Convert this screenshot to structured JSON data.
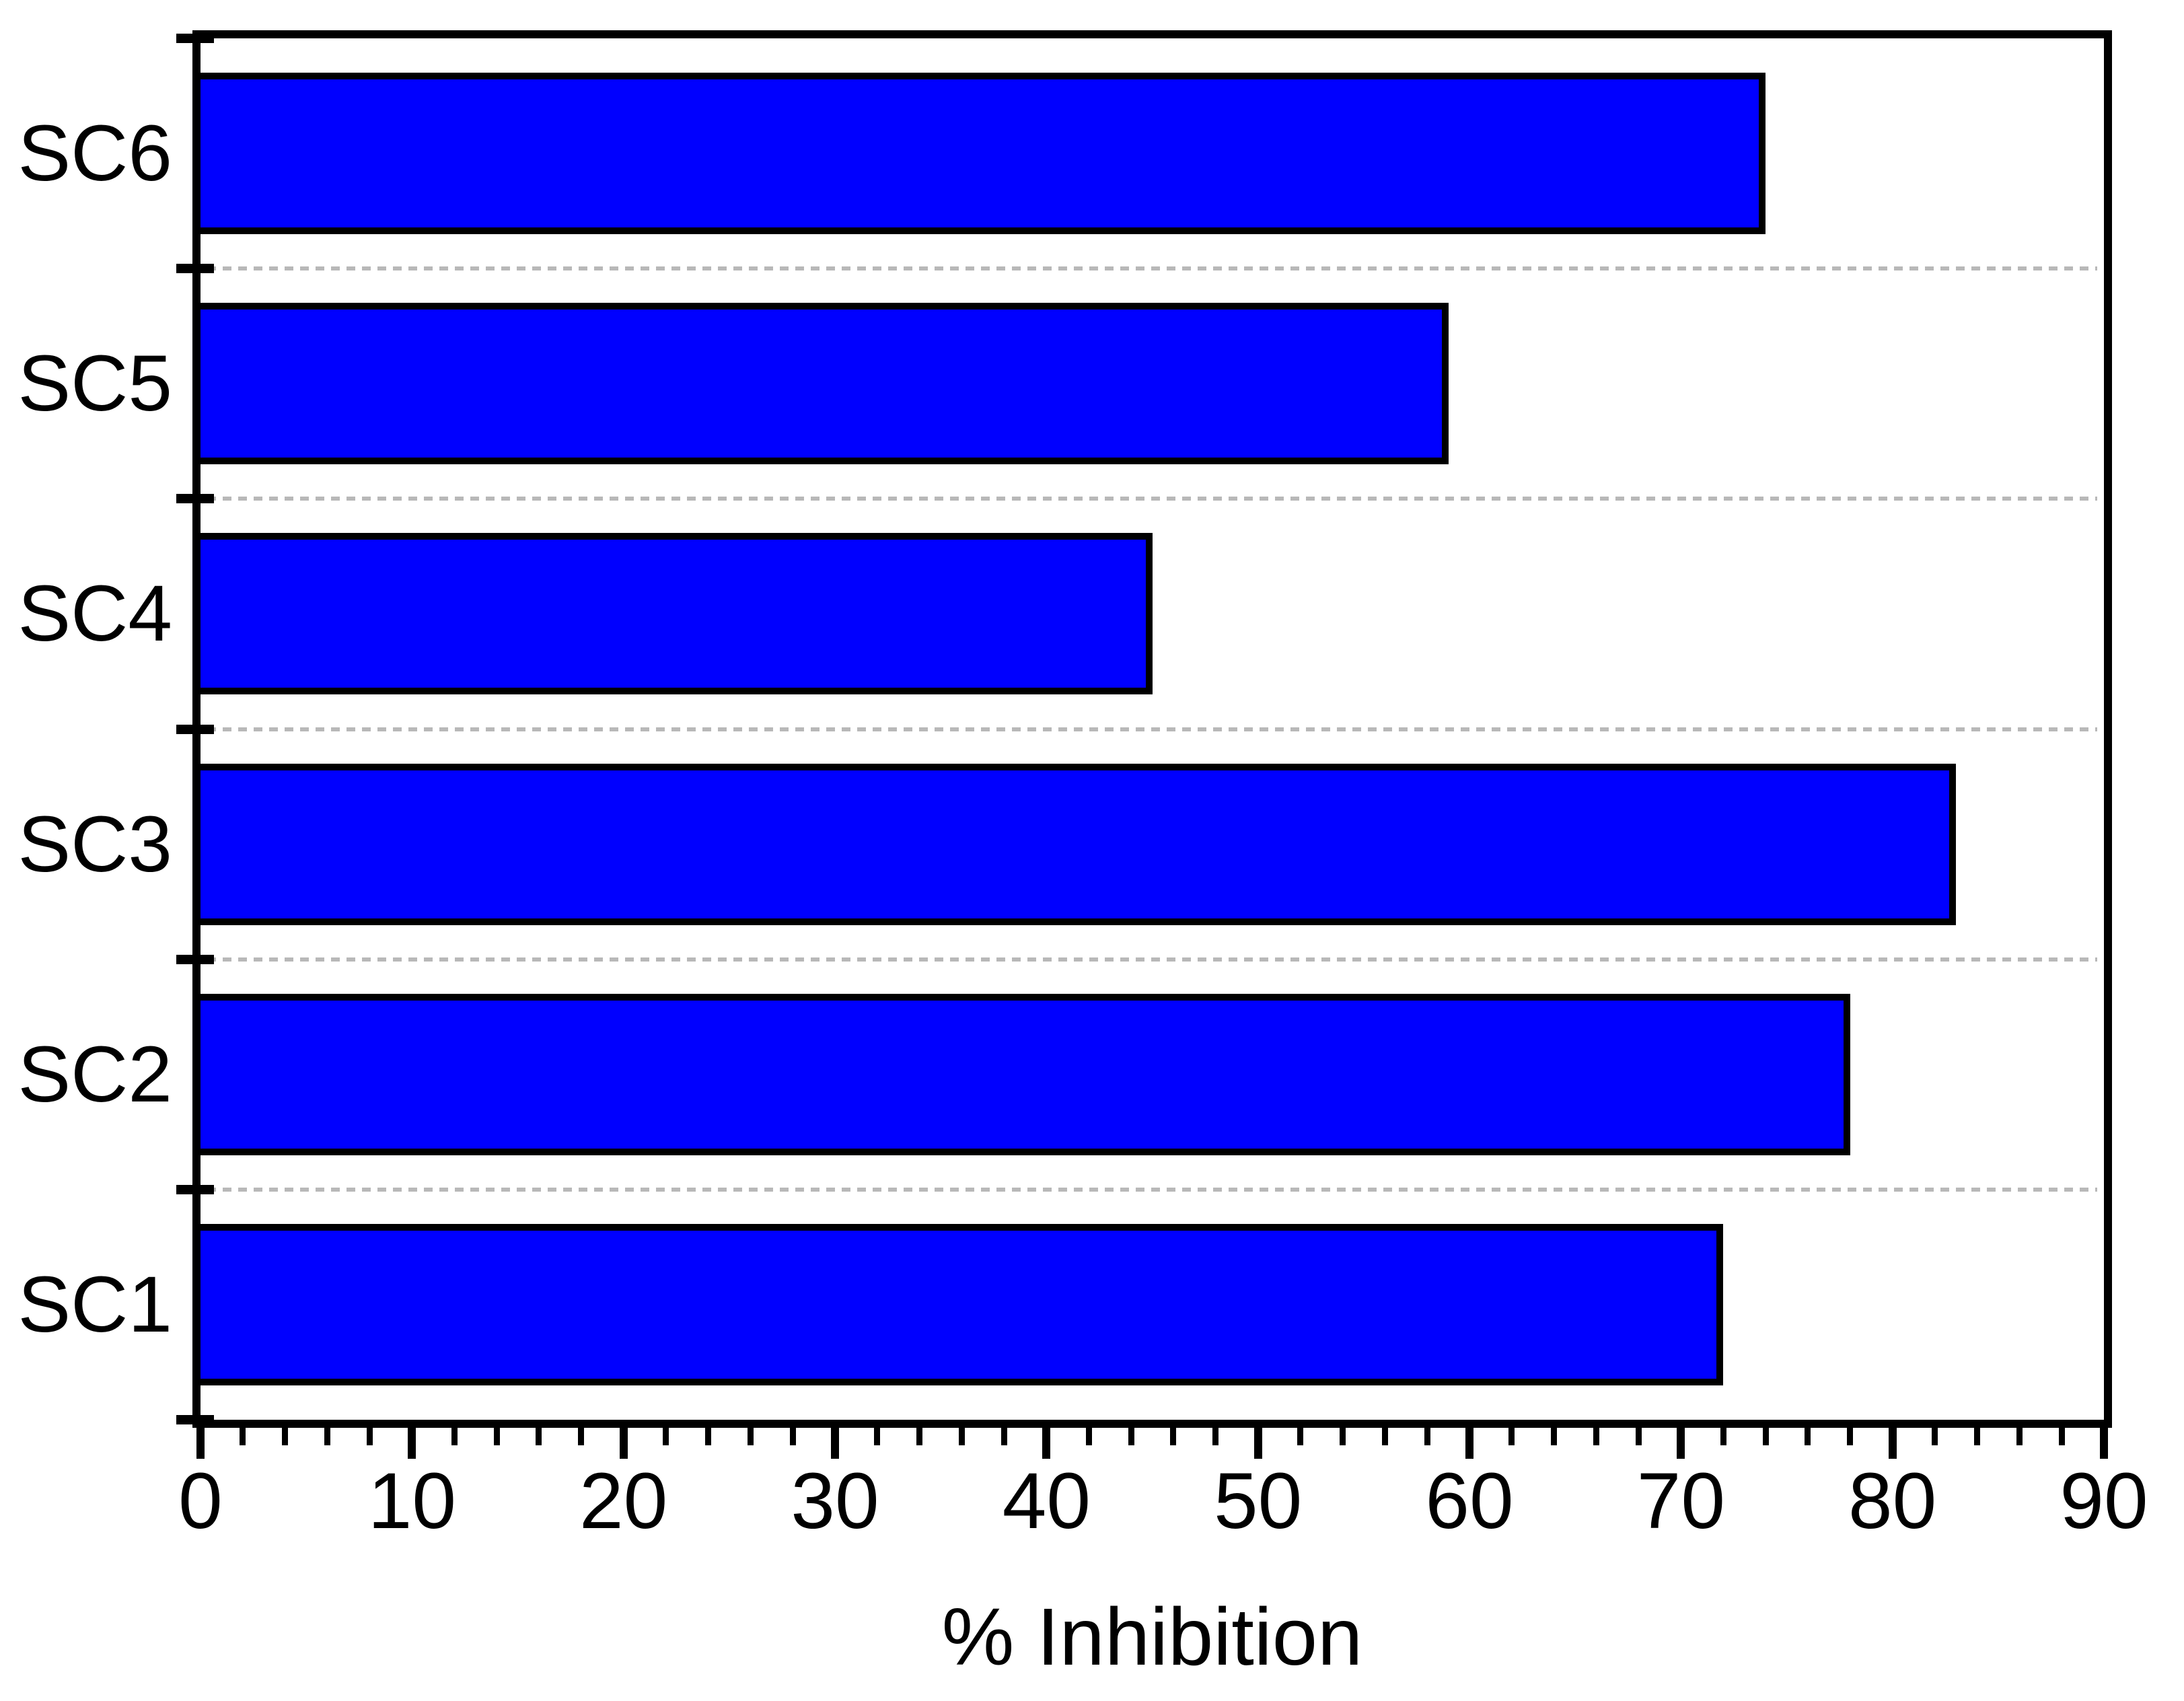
{
  "chart_data": {
    "type": "bar",
    "orientation": "horizontal",
    "title": "",
    "xlabel": "% Inhibition",
    "ylabel": "",
    "categories": [
      "SC6",
      "SC5",
      "SC4",
      "SC3",
      "SC2",
      "SC1"
    ],
    "categories_order": "top-to-bottom",
    "values": [
      74,
      59,
      45,
      83,
      78,
      72
    ],
    "xlim": [
      0,
      90
    ],
    "x_major_ticks": [
      0,
      10,
      20,
      30,
      40,
      50,
      60,
      70,
      80,
      90
    ],
    "x_minor_tick_step": 2,
    "grid": "horizontal dashed gridlines at category band boundaries",
    "legend": "none",
    "colors": {
      "bar_fill": "#0000FF",
      "bar_border": "#000000",
      "axis": "#000000",
      "gridline": "#B8B8B8",
      "background": "#FFFFFF",
      "text": "#000000"
    }
  }
}
